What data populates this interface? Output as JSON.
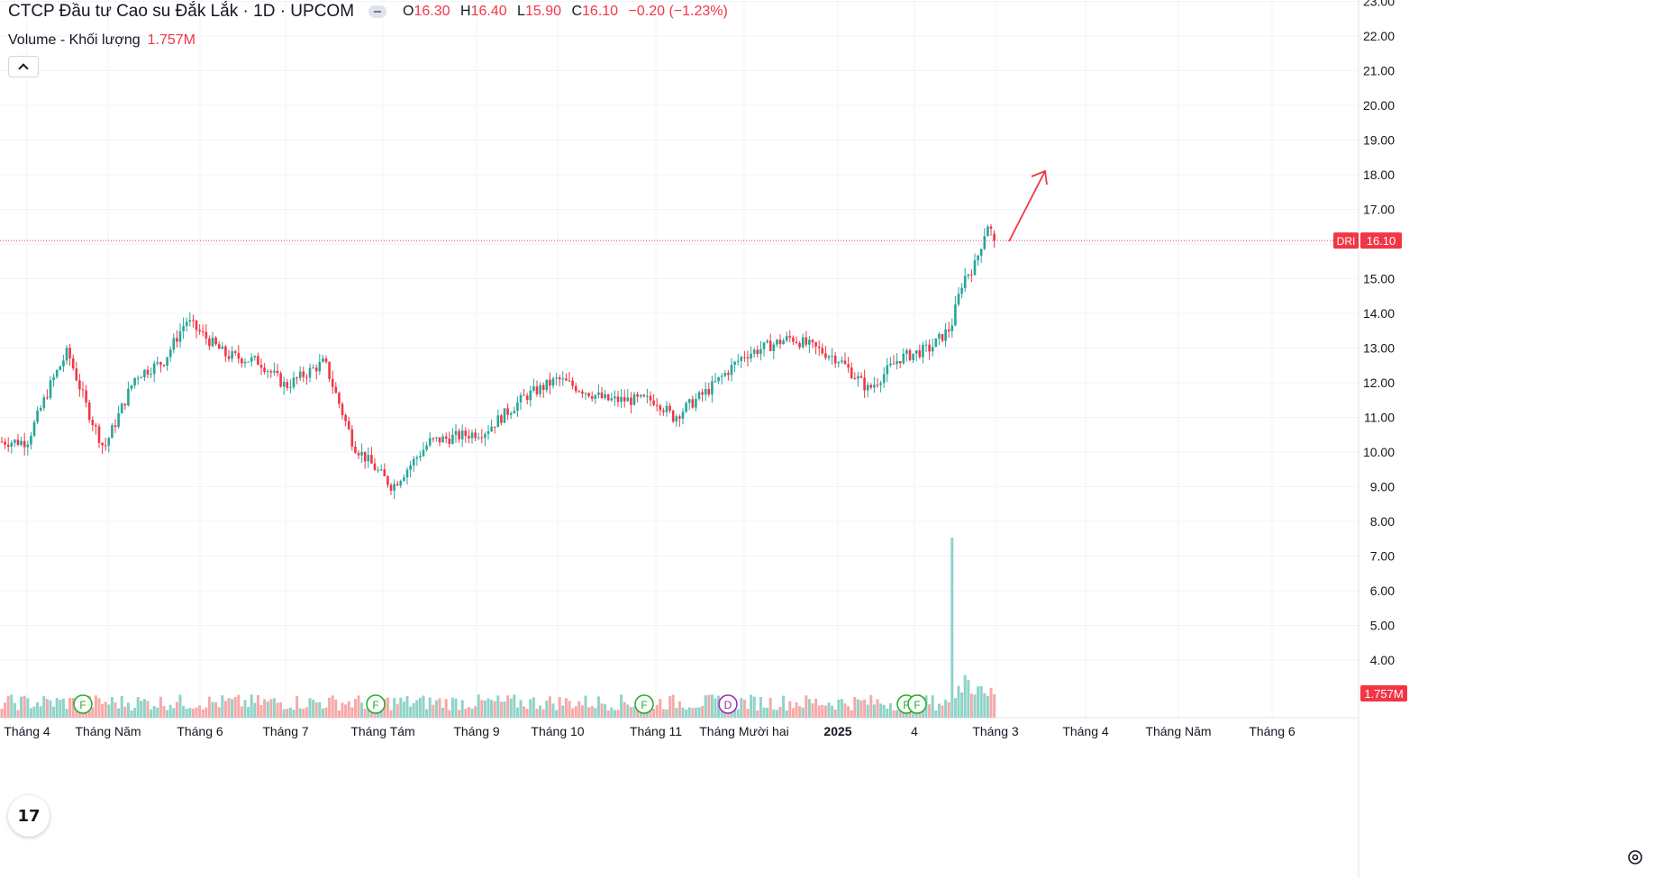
{
  "header": {
    "title": "CTCP Đầu tư Cao su Đắk Lắk · 1D · UPCOM",
    "ohlc": [
      {
        "label": "O",
        "value": "16.30"
      },
      {
        "label": "H",
        "value": "16.40"
      },
      {
        "label": "L",
        "value": "15.90"
      },
      {
        "label": "C",
        "value": "16.10"
      }
    ],
    "change": "−0.20 (−1.23%)"
  },
  "volume_legend": {
    "label": "Volume - Khối lượng",
    "value": "1.757M"
  },
  "price_tag": {
    "symbol": "DRI",
    "value": "16.10"
  },
  "volume_tag": "1.757M",
  "logo_text": "17",
  "colors": {
    "up": "#26a69a",
    "down": "#f23645",
    "vol_up": "#8fd3c9",
    "vol_down": "#f7a9a9",
    "grid": "#f0f3fa",
    "arrow": "#f23645"
  },
  "events": [
    {
      "letter": "F",
      "color": "#22ab26"
    },
    {
      "letter": "F",
      "color": "#22ab26"
    },
    {
      "letter": "F",
      "color": "#22ab26"
    },
    {
      "letter": "D",
      "color": "#9c27b0"
    },
    {
      "letter": "F",
      "color": "#22ab26"
    },
    {
      "letter": "F",
      "color": "#22ab26"
    }
  ],
  "chart_data": {
    "type": "candlestick",
    "y_axis_ticks": [
      "23.00",
      "22.00",
      "21.00",
      "20.00",
      "19.00",
      "18.00",
      "17.00",
      "16.00",
      "15.00",
      "14.00",
      "13.00",
      "12.00",
      "11.00",
      "10.00",
      "9.00",
      "8.00",
      "7.00",
      "6.00",
      "5.00",
      "4.00"
    ],
    "x_axis_labels": [
      {
        "text": "Tháng 4",
        "bold": false
      },
      {
        "text": "Tháng Năm",
        "bold": false
      },
      {
        "text": "Tháng 6",
        "bold": false
      },
      {
        "text": "Tháng 7",
        "bold": false
      },
      {
        "text": "Tháng Tám",
        "bold": false
      },
      {
        "text": "Tháng 9",
        "bold": false
      },
      {
        "text": "Tháng 10",
        "bold": false
      },
      {
        "text": "Tháng 11",
        "bold": false
      },
      {
        "text": "Tháng Mười hai",
        "bold": false
      },
      {
        "text": "2025",
        "bold": true
      },
      {
        "text": "4",
        "bold": false
      },
      {
        "text": "Tháng 3",
        "bold": false
      },
      {
        "text": "Tháng 4",
        "bold": false
      },
      {
        "text": "Tháng Năm",
        "bold": false
      },
      {
        "text": "Tháng 6",
        "bold": false
      }
    ],
    "last_close": 16.1,
    "volume_last_millions": 1.757,
    "anchors": [
      {
        "month_idx": 0,
        "close": 10.3
      },
      {
        "month_idx": 0.3,
        "close": 12.0
      },
      {
        "month_idx": 0.5,
        "close": 12.9
      },
      {
        "month_idx": 0.75,
        "close": 11.2
      },
      {
        "month_idx": 0.95,
        "close": 10.1
      },
      {
        "month_idx": 1.3,
        "close": 12.2
      },
      {
        "month_idx": 1.6,
        "close": 12.6
      },
      {
        "month_idx": 1.85,
        "close": 13.8
      },
      {
        "month_idx": 2.3,
        "close": 12.8
      },
      {
        "month_idx": 2.7,
        "close": 12.6
      },
      {
        "month_idx": 3.0,
        "close": 11.9
      },
      {
        "month_idx": 3.4,
        "close": 12.6
      },
      {
        "month_idx": 3.7,
        "close": 10.2
      },
      {
        "month_idx": 4.1,
        "close": 9.0
      },
      {
        "month_idx": 4.5,
        "close": 10.3
      },
      {
        "month_idx": 5.1,
        "close": 10.6
      },
      {
        "month_idx": 5.6,
        "close": 11.6
      },
      {
        "month_idx": 6.0,
        "close": 12.1
      },
      {
        "month_idx": 6.5,
        "close": 11.5
      },
      {
        "month_idx": 7.0,
        "close": 11.5
      },
      {
        "month_idx": 7.2,
        "close": 11.0
      },
      {
        "month_idx": 7.6,
        "close": 11.8
      },
      {
        "month_idx": 8.0,
        "close": 12.8
      },
      {
        "month_idx": 8.5,
        "close": 13.3
      },
      {
        "month_idx": 9.0,
        "close": 12.7
      },
      {
        "month_idx": 9.4,
        "close": 11.8
      },
      {
        "month_idx": 9.8,
        "close": 12.7
      },
      {
        "month_idx": 10.2,
        "close": 13.0
      },
      {
        "month_idx": 10.45,
        "close": 13.6
      },
      {
        "month_idx": 10.6,
        "close": 15.0
      },
      {
        "month_idx": 10.75,
        "close": 15.4
      },
      {
        "month_idx": 10.9,
        "close": 16.6
      },
      {
        "month_idx": 11.0,
        "close": 16.1
      }
    ]
  }
}
